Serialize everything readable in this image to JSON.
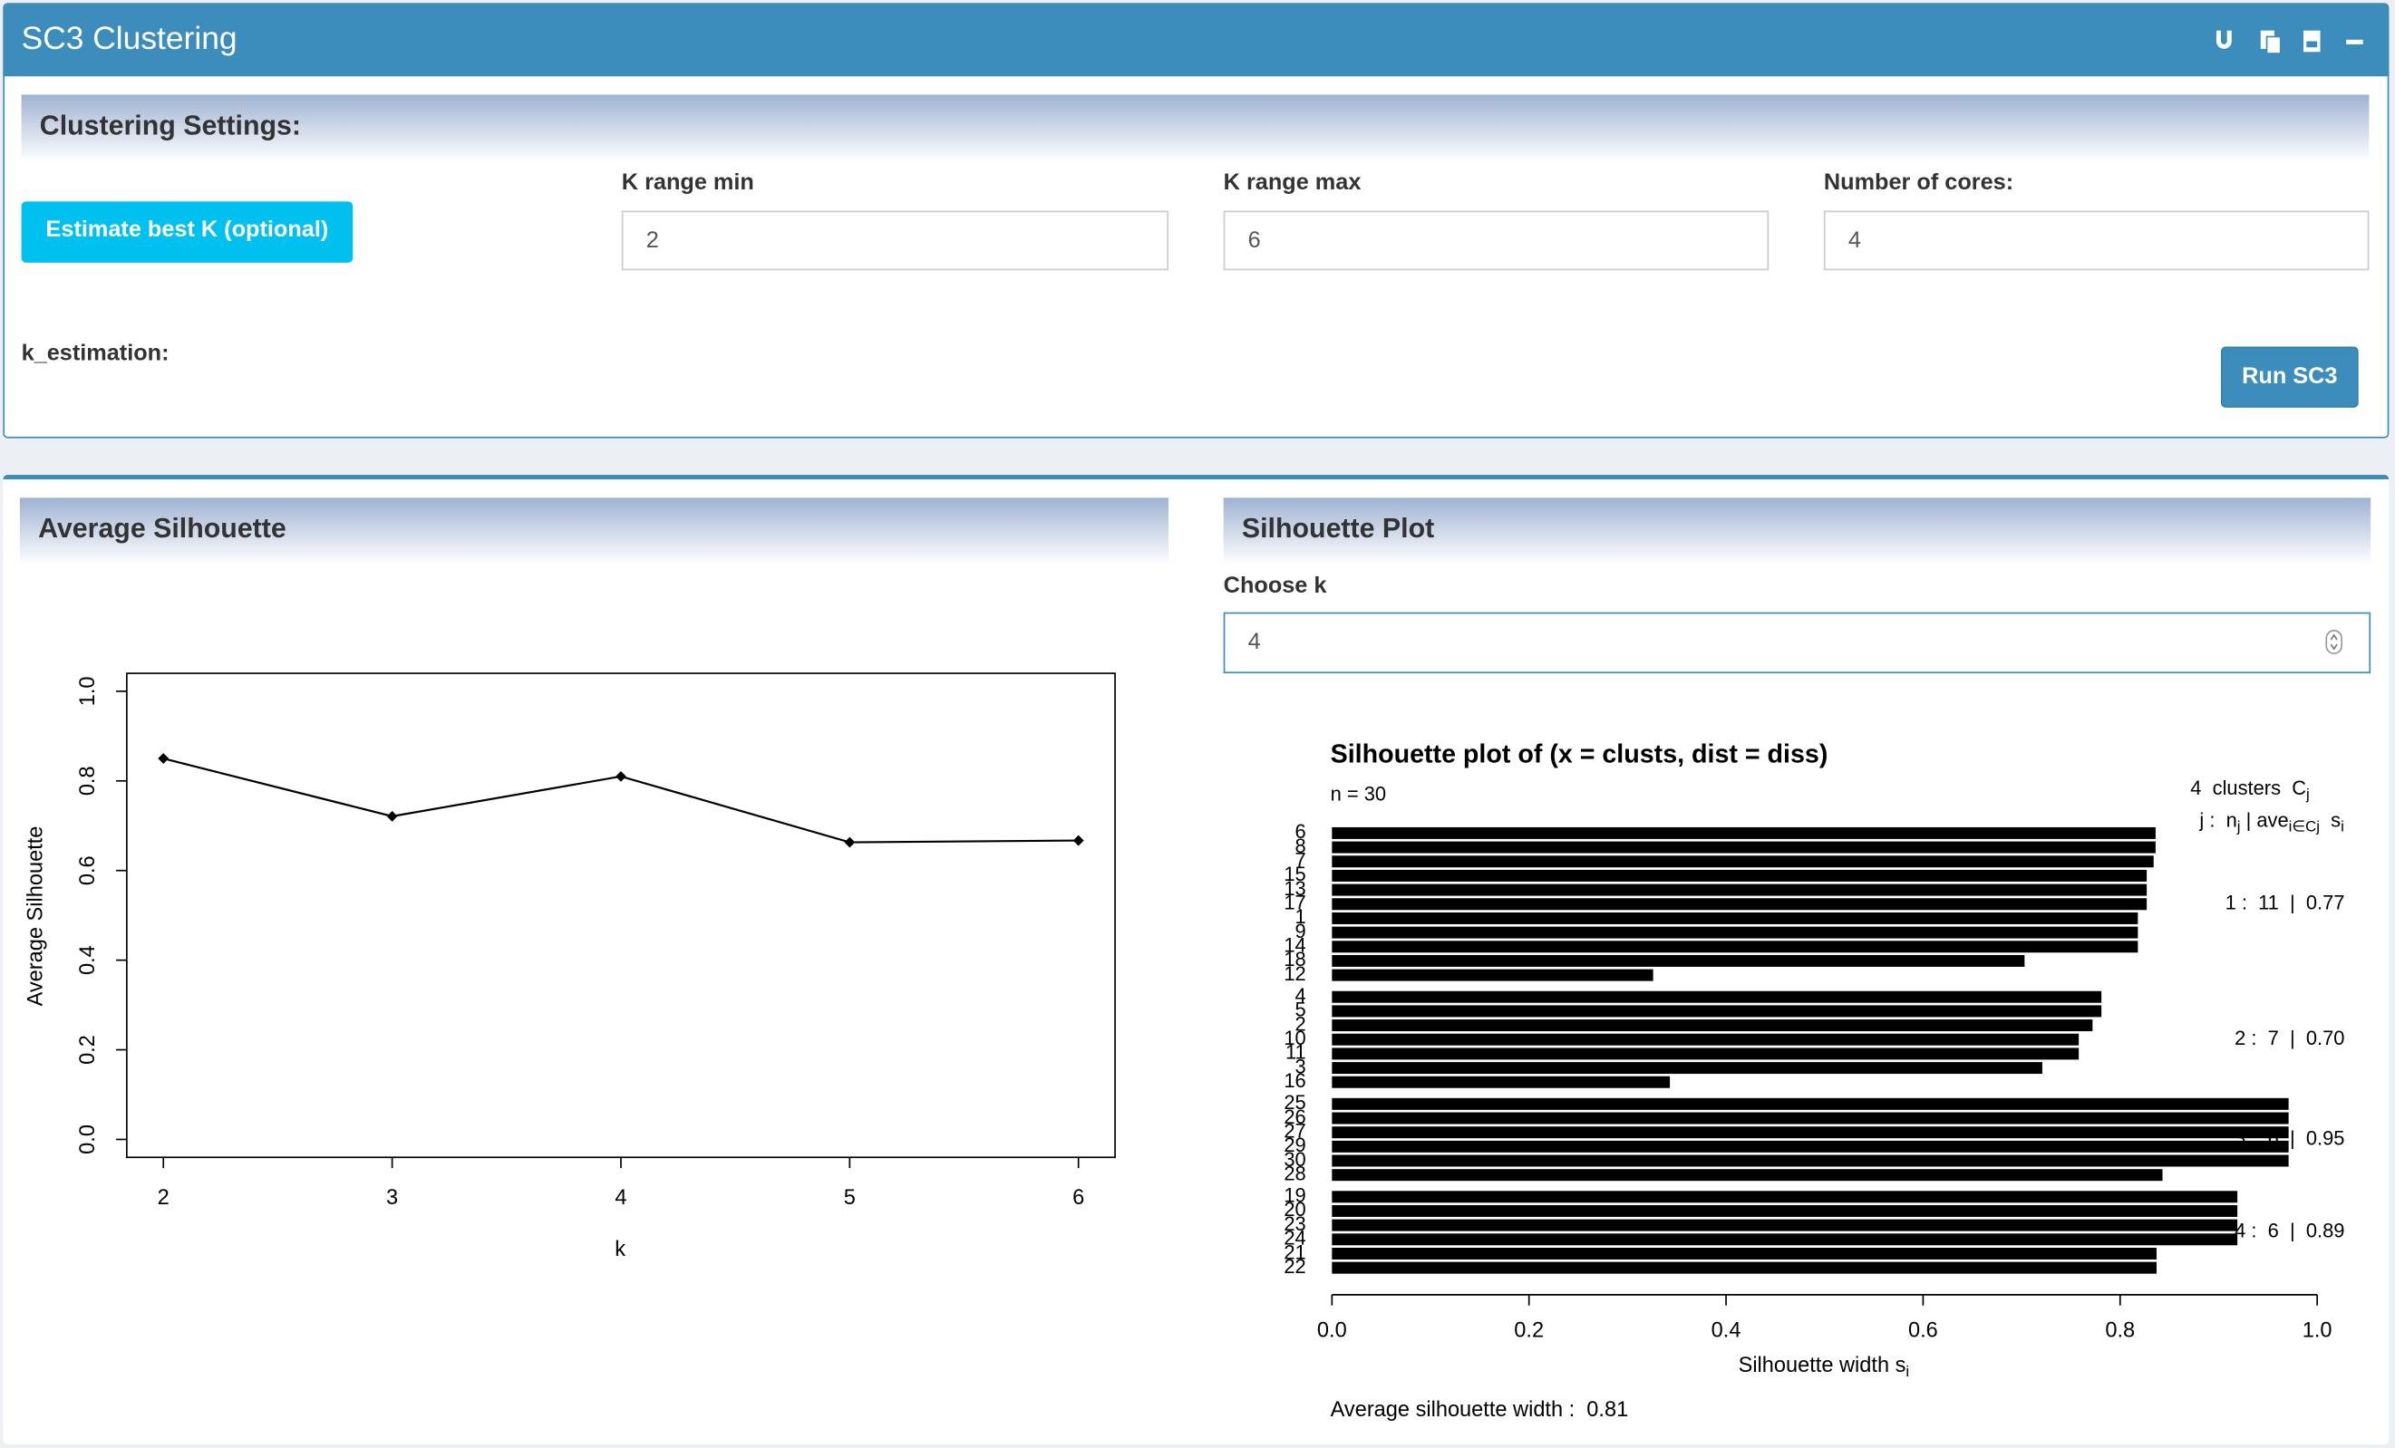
{
  "header": {
    "title": "SC3 Clustering"
  },
  "settings": {
    "title": "Clustering Settings:",
    "estimate_button": "Estimate best K (optional)",
    "k_min_label": "K range min",
    "k_min": 2,
    "k_max_label": "K range max",
    "k_max": 6,
    "cores_label": "Number of cores:",
    "cores": 4,
    "k_estimation_label": "k_estimation:",
    "run_button": "Run SC3"
  },
  "avg_panel": {
    "title": "Average Silhouette"
  },
  "sil_panel": {
    "title": "Silhouette Plot",
    "choose_k_label": "Choose k",
    "choose_k": 4
  },
  "chart_data": [
    {
      "type": "line",
      "ylabel": "Average Silhouette",
      "xlabel": "k",
      "x": [
        2,
        3,
        4,
        5,
        6
      ],
      "values": [
        0.85,
        0.721,
        0.81,
        0.663,
        0.667
      ],
      "color": "#000000",
      "xlim": [
        1.84,
        6.16
      ],
      "ylim": [
        -0.04,
        1.04
      ],
      "xticks": [
        2,
        3,
        4,
        5,
        6
      ],
      "yticks": [
        {
          "value": 0,
          "label": "0.0"
        },
        0.2,
        0.4,
        0.6,
        0.8,
        {
          "value": 1,
          "label": "1.0"
        }
      ]
    },
    {
      "type": "silhouette",
      "title": "Silhouette plot of (x = clusts, dist = diss)",
      "subtitle": "n = 30",
      "legend_title": [
        "4  clusters  C",
        "j"
      ],
      "legend_header": [
        "j :  n",
        "j",
        " | ave",
        "i∈Cj",
        "  s",
        "i"
      ],
      "xlabel": [
        "Silhouette width s",
        "i"
      ],
      "annotation": "Average silhouette width :  0.81",
      "xlim": [
        0,
        1
      ],
      "xticks": [
        {
          "value": 0,
          "label": "0.0"
        },
        0.2,
        0.4,
        0.6,
        0.8,
        {
          "value": 1,
          "label": "1.0"
        }
      ],
      "series": [
        {
          "name": "1 :  11  |  0.77",
          "color": "#000000",
          "categories": [
            "6",
            "8",
            "7",
            "15",
            "13",
            "17",
            "1",
            "9",
            "14",
            "18",
            "12"
          ],
          "values": [
            0.836,
            0.836,
            0.834,
            0.827,
            0.827,
            0.827,
            0.818,
            0.818,
            0.818,
            0.703,
            0.326
          ]
        },
        {
          "name": "2 :  7  |  0.70",
          "color": "#000000",
          "categories": [
            "4",
            "5",
            "2",
            "10",
            "11",
            "3",
            "16"
          ],
          "values": [
            0.781,
            0.781,
            0.772,
            0.758,
            0.758,
            0.721,
            0.343
          ]
        },
        {
          "name": "3 :  6  |  0.95",
          "color": "#000000",
          "categories": [
            "25",
            "26",
            "27",
            "29",
            "30",
            "28"
          ],
          "values": [
            0.971,
            0.971,
            0.971,
            0.971,
            0.971,
            0.843
          ]
        },
        {
          "name": "4 :  6  |  0.89",
          "color": "#000000",
          "categories": [
            "19",
            "20",
            "23",
            "24",
            "21",
            "22"
          ],
          "values": [
            0.919,
            0.919,
            0.919,
            0.919,
            0.837,
            0.837
          ]
        }
      ]
    }
  ]
}
